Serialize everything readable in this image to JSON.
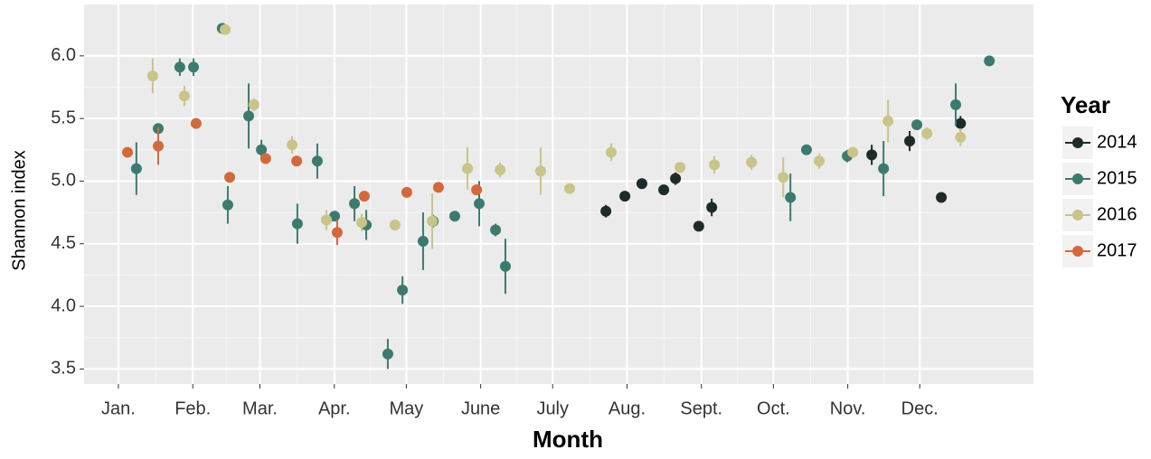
{
  "chart_data": {
    "type": "scatter",
    "x_label": "Month",
    "y_label": "Shannon index",
    "legend_title": "Year",
    "legend": "right",
    "grid": true,
    "xlim": [
      -13.3,
      382.4
    ],
    "ylim": [
      3.38,
      6.41
    ],
    "xticks": [
      {
        "value": 1,
        "label": "Jan."
      },
      {
        "value": 32,
        "label": "Feb."
      },
      {
        "value": 60,
        "label": "Mar."
      },
      {
        "value": 91,
        "label": "Apr."
      },
      {
        "value": 121,
        "label": "May"
      },
      {
        "value": 152,
        "label": "June"
      },
      {
        "value": 182,
        "label": "July"
      },
      {
        "value": 213,
        "label": "Aug."
      },
      {
        "value": 244,
        "label": "Sept."
      },
      {
        "value": 274,
        "label": "Oct."
      },
      {
        "value": 305,
        "label": "Nov."
      },
      {
        "value": 335,
        "label": "Dec."
      }
    ],
    "yticks": [
      3.5,
      {
        "value": 4,
        "label": "4.0"
      },
      4.5,
      {
        "value": 5,
        "label": "5.0"
      },
      5.5,
      {
        "value": 6,
        "label": "6.0"
      }
    ],
    "series": [
      {
        "name": "2014",
        "color": "#1d2b2b",
        "x": [
          204.2,
          212.1,
          219.2,
          228.3,
          233.2,
          242.9,
          248.3,
          315.0,
          330.8,
          344.0,
          352.0
        ],
        "values": [
          4.76,
          4.88,
          4.98,
          4.93,
          5.02,
          4.64,
          4.79,
          5.21,
          5.32,
          4.87,
          5.46
        ],
        "errors": [
          0.05,
          0.03,
          0.03,
          0.03,
          0.05,
          0.02,
          0.07,
          0.08,
          0.08,
          0.02,
          0.06
        ]
      },
      {
        "name": "2015",
        "color": "#3d7a6e",
        "x": [
          8.5,
          17.6,
          26.6,
          32.3,
          44.3,
          46.6,
          55.3,
          60.6,
          75.6,
          83.9,
          91.1,
          99.4,
          104.3,
          113.3,
          119.4,
          128.0,
          132.2,
          141.2,
          151.4,
          158.2,
          162.3,
          281.1,
          287.8,
          304.8,
          319.9,
          333.8,
          350.0,
          364.0
        ],
        "values": [
          5.1,
          5.42,
          5.91,
          5.91,
          6.22,
          4.81,
          5.52,
          5.25,
          4.66,
          5.16,
          4.72,
          4.82,
          4.65,
          3.62,
          4.13,
          4.52,
          4.68,
          4.72,
          4.82,
          4.61,
          4.32,
          4.87,
          5.25,
          5.2,
          5.1,
          5.45,
          5.61,
          5.96
        ],
        "errors": [
          0.21,
          0.03,
          0.07,
          0.07,
          0.02,
          0.15,
          0.26,
          0.08,
          0.16,
          0.14,
          0.04,
          0.14,
          0.12,
          0.12,
          0.11,
          0.23,
          0.05,
          0.03,
          0.18,
          0.05,
          0.22,
          0.19,
          0.03,
          0.05,
          0.22,
          0.03,
          0.17,
          0.04
        ]
      },
      {
        "name": "2016",
        "color": "#c8c48a",
        "x": [
          15.3,
          28.5,
          45.5,
          57.5,
          73.4,
          87.7,
          102.4,
          116.3,
          131.8,
          146.5,
          160.1,
          177.0,
          189.1,
          206.4,
          235.1,
          249.4,
          264.9,
          278.1,
          293.1,
          307.1,
          321.8,
          338.0,
          352.0
        ],
        "values": [
          5.84,
          5.68,
          6.21,
          5.61,
          5.29,
          4.69,
          4.67,
          4.65,
          4.68,
          5.1,
          5.09,
          5.08,
          4.94,
          5.23,
          5.11,
          5.13,
          5.15,
          5.03,
          5.16,
          5.23,
          5.48,
          5.38,
          5.35
        ],
        "errors": [
          0.14,
          0.08,
          0.02,
          0.05,
          0.07,
          0.08,
          0.07,
          0.02,
          0.22,
          0.17,
          0.06,
          0.19,
          0.03,
          0.07,
          0.03,
          0.07,
          0.06,
          0.16,
          0.06,
          0.04,
          0.17,
          0.05,
          0.07
        ]
      },
      {
        "name": "2017",
        "color": "#d2693c",
        "x": [
          4.8,
          17.6,
          33.4,
          47.4,
          62.4,
          75.3,
          92.2,
          103.5,
          121.2,
          134.4,
          150.3
        ],
        "values": [
          5.23,
          5.28,
          5.46,
          5.03,
          5.18,
          5.16,
          4.59,
          4.88,
          4.91,
          4.95,
          4.93
        ],
        "errors": [
          0.03,
          0.15,
          0.03,
          0.03,
          0.03,
          0.03,
          0.1,
          0.03,
          0.03,
          0.04,
          0.03
        ]
      }
    ]
  }
}
